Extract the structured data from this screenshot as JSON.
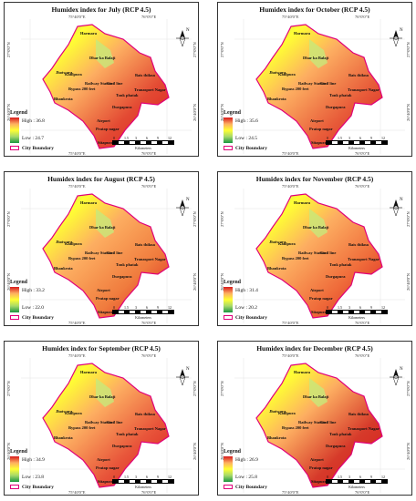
{
  "colors": {
    "high": "#d7191c",
    "mid": "#fdae61",
    "low_yellow": "#ffff33",
    "low_green": "#1a9641",
    "boundary": "#e0007a"
  },
  "common": {
    "legend_title": "Legend",
    "city_boundary": "City Boundary",
    "scale_unit": "Kilometers",
    "scale_ticks": [
      "0",
      "1.5",
      "3",
      "6",
      "9",
      "12"
    ],
    "north_label": "N",
    "lon_left": "75°40'0\"E",
    "lon_right": "76°0'0\"E",
    "lat_top": "27°0'0\"N",
    "lat_bottom": "26°40'0\"N"
  },
  "places": [
    "Harmara",
    "Dhar ka Balaji",
    "Jhotwara",
    "Kanlpura",
    "Railway Station",
    "Civil line",
    "Bais thikna",
    "Tranasport Nagar",
    "Bypass 200 feet",
    "Tonk phatak",
    "Bhankrota",
    "Durgapura",
    "Airport",
    "Pratap nagar",
    "Sitapura Industrial Area"
  ],
  "panels": [
    {
      "title": "Humidex index for July (RCP 4.5)",
      "high": "High : 36.8",
      "low": "Low : 24.7"
    },
    {
      "title": "Humidex index for October (RCP 4.5)",
      "high": "High : 35.6",
      "low": "Low : 24.5"
    },
    {
      "title": "Humidex index for August (RCP 4.5)",
      "high": "High : 33.2",
      "low": "Low : 22.0"
    },
    {
      "title": "Humidex index for November (RCP 4.5)",
      "high": "High : 31.4",
      "low": "Low : 20.2"
    },
    {
      "title": "Humidex index for September (RCP 4.5)",
      "high": "High : 34.9",
      "low": "Low : 23.8"
    },
    {
      "title": "Humidex index for December (RCP 4.5)",
      "high": "High : 26.9",
      "low": "Low : 25.8"
    }
  ]
}
